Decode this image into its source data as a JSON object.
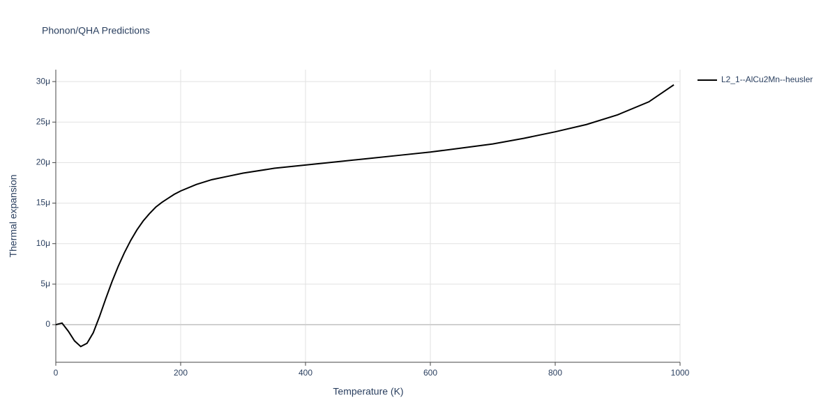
{
  "chart_data": {
    "type": "line",
    "title": "Phonon/QHA Predictions",
    "x_label": "Temperature (K)",
    "y_label": "Thermal expansion",
    "x": [
      0,
      10,
      20,
      30,
      40,
      50,
      60,
      70,
      80,
      90,
      100,
      110,
      120,
      130,
      140,
      150,
      160,
      170,
      180,
      190,
      200,
      225,
      250,
      275,
      300,
      350,
      400,
      450,
      500,
      550,
      600,
      650,
      700,
      750,
      800,
      850,
      900,
      950,
      990
    ],
    "series": [
      {
        "name": "L2_1--AlCu2Mn--heusler",
        "color": "#000000",
        "values": [
          0,
          2e-07,
          -8e-07,
          -2e-06,
          -2.7e-06,
          -2.3e-06,
          -1e-06,
          1e-06,
          3.2e-06,
          5.3e-06,
          7.2e-06,
          8.9e-06,
          1.04e-05,
          1.17e-05,
          1.28e-05,
          1.37e-05,
          1.45e-05,
          1.51e-05,
          1.56e-05,
          1.61e-05,
          1.65e-05,
          1.73e-05,
          1.79e-05,
          1.83e-05,
          1.87e-05,
          1.93e-05,
          1.97e-05,
          2.01e-05,
          2.05e-05,
          2.09e-05,
          2.13e-05,
          2.18e-05,
          2.23e-05,
          2.3e-05,
          2.38e-05,
          2.47e-05,
          2.59e-05,
          2.75e-05,
          2.96e-05
        ]
      }
    ],
    "xlim": [
      0,
      1000
    ],
    "xticks": [
      0,
      200,
      400,
      600,
      800,
      1000
    ],
    "ylim": [
      -4.64e-06,
      3.147e-05
    ],
    "yticks": [
      0,
      {
        "value": 5e-06,
        "label": "5μ"
      },
      {
        "value": 1e-05,
        "label": "10μ"
      },
      {
        "value": 1.5e-05,
        "label": "15μ"
      },
      {
        "value": 2e-05,
        "label": "20μ"
      },
      {
        "value": 2.5e-05,
        "label": "25μ"
      },
      {
        "value": 3e-05,
        "label": "30μ"
      }
    ],
    "grid": true,
    "legend": "right"
  }
}
